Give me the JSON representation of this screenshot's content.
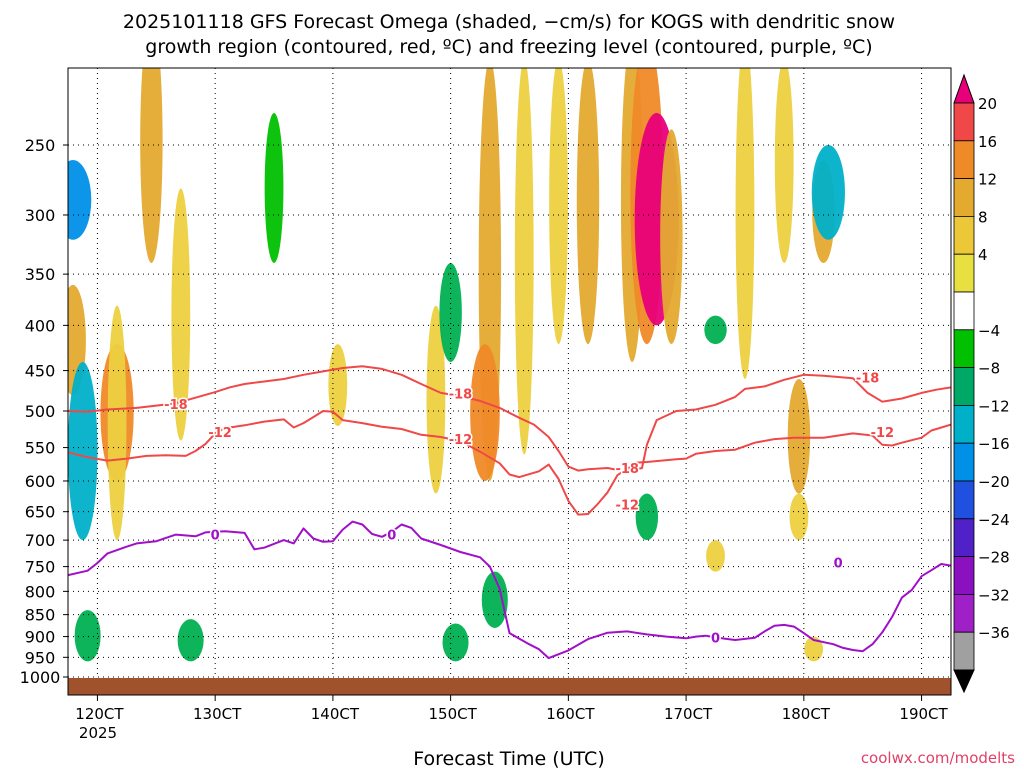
{
  "title_line1": "2025101118 GFS Forecast Omega (shaded, −cm/s) for KOGS with dendritic snow",
  "title_line2": "growth region (contoured, red, ºC) and freezing level (contoured, purple, ºC)",
  "xlabel": "Forecast Time (UTC)",
  "watermark": "coolwx.com/modelts",
  "year_label": "2025",
  "chart_data": {
    "type": "heatmap",
    "title": "2025101118 GFS Forecast Omega (shaded, −cm/s) for KOGS with dendritic snow growth region (contoured, red, ºC) and freezing level (contoured, purple, ºC)",
    "xlabel": "Forecast Time (UTC)",
    "ylabel": "",
    "x_range": [
      "2025-10-11 18Z",
      "2025-10-19 18Z"
    ],
    "y_scale": "log-pressure (inverted)",
    "y_range_hpa": [
      1000,
      200
    ],
    "x_ticks": [
      {
        "label": "120CT",
        "hours": 6
      },
      {
        "label": "130CT",
        "hours": 30
      },
      {
        "label": "140CT",
        "hours": 54
      },
      {
        "label": "150CT",
        "hours": 78
      },
      {
        "label": "160CT",
        "hours": 102
      },
      {
        "label": "170CT",
        "hours": 126
      },
      {
        "label": "180CT",
        "hours": 150
      },
      {
        "label": "190CT",
        "hours": 174
      }
    ],
    "y_ticks": [
      250,
      300,
      350,
      400,
      450,
      500,
      550,
      600,
      650,
      700,
      750,
      800,
      850,
      900,
      950,
      1000
    ],
    "colorbar": {
      "labels": [
        "20",
        "16",
        "12",
        "8",
        "4",
        "−4",
        "−8",
        "−12",
        "−16",
        "−20",
        "−24",
        "−28",
        "−32",
        "−36"
      ],
      "colors": [
        "#e8007a",
        "#f04848",
        "#ef8a28",
        "#e4aa30",
        "#ecc838",
        "#e8e040",
        "#ffffff",
        "#00c000",
        "#00a868",
        "#00b0c8",
        "#0090e8",
        "#2050e0",
        "#5020c8",
        "#8a10c0",
        "#a020c8",
        "#a0a0a0",
        "#000000"
      ]
    },
    "series": [
      {
        "name": "-18",
        "color": "#f04848",
        "points": [
          [
            0,
            500
          ],
          [
            4,
            501
          ],
          [
            8,
            498
          ],
          [
            14,
            496
          ],
          [
            18,
            493
          ],
          [
            22,
            490
          ],
          [
            26,
            483
          ],
          [
            30,
            476
          ],
          [
            33,
            470
          ],
          [
            36,
            466
          ],
          [
            40,
            463
          ],
          [
            44,
            460
          ],
          [
            48,
            455
          ],
          [
            52,
            451
          ],
          [
            56,
            447
          ],
          [
            60,
            445
          ],
          [
            64,
            448
          ],
          [
            68,
            455
          ],
          [
            72,
            466
          ],
          [
            76,
            477
          ],
          [
            80,
            481
          ],
          [
            84,
            487
          ],
          [
            88,
            496
          ],
          [
            92,
            509
          ],
          [
            95,
            518
          ],
          [
            98,
            535
          ],
          [
            100,
            555
          ],
          [
            102,
            578
          ],
          [
            104,
            584
          ],
          [
            106,
            582
          ],
          [
            110,
            580
          ],
          [
            114,
            586
          ],
          [
            117,
            580
          ],
          [
            118,
            546
          ],
          [
            120,
            512
          ],
          [
            124,
            500
          ],
          [
            128,
            498
          ],
          [
            132,
            492
          ],
          [
            136,
            482
          ],
          [
            138,
            472
          ],
          [
            142,
            469
          ],
          [
            146,
            461
          ],
          [
            150,
            455
          ],
          [
            154,
            456
          ],
          [
            160,
            459
          ],
          [
            163,
            477
          ],
          [
            166,
            488
          ],
          [
            170,
            484
          ],
          [
            174,
            477
          ],
          [
            177,
            473
          ],
          [
            180,
            470
          ]
        ]
      },
      {
        "name": "-12",
        "color": "#f04848",
        "points": [
          [
            0,
            557
          ],
          [
            4,
            564
          ],
          [
            8,
            569
          ],
          [
            12,
            566
          ],
          [
            16,
            562
          ],
          [
            20,
            561
          ],
          [
            24,
            562
          ],
          [
            26,
            555
          ],
          [
            28,
            545
          ],
          [
            30,
            530
          ],
          [
            32,
            523
          ],
          [
            36,
            519
          ],
          [
            40,
            514
          ],
          [
            44,
            511
          ],
          [
            46,
            522
          ],
          [
            48,
            516
          ],
          [
            50,
            508
          ],
          [
            52,
            500
          ],
          [
            54,
            501
          ],
          [
            56,
            512
          ],
          [
            60,
            516
          ],
          [
            64,
            521
          ],
          [
            68,
            524
          ],
          [
            72,
            532
          ],
          [
            76,
            535
          ],
          [
            80,
            541
          ],
          [
            84,
            556
          ],
          [
            88,
            573
          ],
          [
            90,
            590
          ],
          [
            92,
            594
          ],
          [
            96,
            585
          ],
          [
            98,
            575
          ],
          [
            100,
            597
          ],
          [
            102,
            632
          ],
          [
            104,
            655
          ],
          [
            106,
            654
          ],
          [
            108,
            637
          ],
          [
            110,
            618
          ],
          [
            112,
            591
          ],
          [
            116,
            572
          ],
          [
            118,
            571
          ],
          [
            124,
            567
          ],
          [
            126,
            566
          ],
          [
            128,
            559
          ],
          [
            132,
            555
          ],
          [
            136,
            553
          ],
          [
            140,
            543
          ],
          [
            144,
            538
          ],
          [
            148,
            536
          ],
          [
            154,
            536
          ],
          [
            160,
            530
          ],
          [
            164,
            533
          ],
          [
            166,
            546
          ],
          [
            168,
            547
          ],
          [
            170,
            543
          ],
          [
            174,
            536
          ],
          [
            176,
            526
          ],
          [
            180,
            518
          ]
        ]
      },
      {
        "name": "0",
        "color": "#a010c8",
        "points": [
          [
            0,
            767
          ],
          [
            4,
            758
          ],
          [
            6,
            743
          ],
          [
            8,
            725
          ],
          [
            12,
            712
          ],
          [
            14,
            706
          ],
          [
            18,
            702
          ],
          [
            22,
            690
          ],
          [
            26,
            693
          ],
          [
            28,
            686
          ],
          [
            32,
            684
          ],
          [
            36,
            687
          ],
          [
            38,
            717
          ],
          [
            40,
            714
          ],
          [
            44,
            700
          ],
          [
            46,
            706
          ],
          [
            48,
            679
          ],
          [
            50,
            697
          ],
          [
            52,
            703
          ],
          [
            54,
            702
          ],
          [
            56,
            681
          ],
          [
            58,
            667
          ],
          [
            60,
            672
          ],
          [
            62,
            689
          ],
          [
            64,
            694
          ],
          [
            66,
            685
          ],
          [
            68,
            672
          ],
          [
            70,
            678
          ],
          [
            72,
            697
          ],
          [
            76,
            709
          ],
          [
            80,
            722
          ],
          [
            84,
            732
          ],
          [
            86,
            750
          ],
          [
            88,
            795
          ],
          [
            90,
            892
          ],
          [
            94,
            918
          ],
          [
            96,
            930
          ],
          [
            98,
            952
          ],
          [
            102,
            933
          ],
          [
            106,
            906
          ],
          [
            110,
            891
          ],
          [
            114,
            888
          ],
          [
            118,
            895
          ],
          [
            122,
            900
          ],
          [
            126,
            904
          ],
          [
            128,
            900
          ],
          [
            130,
            898
          ],
          [
            132,
            902
          ],
          [
            134,
            905
          ],
          [
            136,
            908
          ],
          [
            140,
            903
          ],
          [
            142,
            888
          ],
          [
            144,
            875
          ],
          [
            146,
            873
          ],
          [
            148,
            877
          ],
          [
            150,
            892
          ],
          [
            152,
            908
          ],
          [
            156,
            918
          ],
          [
            158,
            927
          ],
          [
            160,
            932
          ],
          [
            162,
            935
          ],
          [
            164,
            918
          ],
          [
            166,
            890
          ],
          [
            168,
            855
          ],
          [
            170,
            813
          ],
          [
            172,
            797
          ],
          [
            174,
            769
          ],
          [
            176,
            757
          ],
          [
            178,
            745
          ],
          [
            180,
            748
          ]
        ]
      }
    ],
    "contour_labels": [
      {
        "text": "-18",
        "hours": 22,
        "hpa": 491
      },
      {
        "text": "-18",
        "hours": 80,
        "hpa": 478
      },
      {
        "text": "-18",
        "hours": 114,
        "hpa": 580
      },
      {
        "text": "-18",
        "hours": 163,
        "hpa": 458
      },
      {
        "text": "-12",
        "hours": 31,
        "hpa": 528
      },
      {
        "text": "-12",
        "hours": 80,
        "hpa": 538
      },
      {
        "text": "-12",
        "hours": 114,
        "hpa": 638
      },
      {
        "text": "-12",
        "hours": 166,
        "hpa": 528
      },
      {
        "text": "0",
        "hours": 30,
        "hpa": 690
      },
      {
        "text": "0",
        "hours": 66,
        "hpa": 690
      },
      {
        "text": "0",
        "hours": 132,
        "hpa": 902
      },
      {
        "text": "0",
        "hours": 157,
        "hpa": 742
      }
    ],
    "omega_blobs": [
      {
        "hours": 1,
        "hpa_top": 360,
        "hpa_bot": 480,
        "value": 10
      },
      {
        "hours": 3,
        "hpa_top": 440,
        "hpa_bot": 700,
        "value": -12
      },
      {
        "hours": 1,
        "hpa_top": 260,
        "hpa_bot": 320,
        "value": -16
      },
      {
        "hours": 10,
        "hpa_top": 420,
        "hpa_bot": 600,
        "value": 14
      },
      {
        "hours": 10,
        "hpa_top": 380,
        "hpa_bot": 700,
        "value": 6
      },
      {
        "hours": 4,
        "hpa_top": 840,
        "hpa_bot": 960,
        "value": -10
      },
      {
        "hours": 17,
        "hpa_top": 180,
        "hpa_bot": 340,
        "value": 8
      },
      {
        "hours": 23,
        "hpa_top": 280,
        "hpa_bot": 540,
        "value": 6
      },
      {
        "hours": 25,
        "hpa_top": 860,
        "hpa_bot": 960,
        "value": -10
      },
      {
        "hours": 42,
        "hpa_top": 230,
        "hpa_bot": 340,
        "value": -6
      },
      {
        "hours": 55,
        "hpa_top": 420,
        "hpa_bot": 520,
        "value": 6
      },
      {
        "hours": 75,
        "hpa_top": 380,
        "hpa_bot": 620,
        "value": 6
      },
      {
        "hours": 78,
        "hpa_top": 340,
        "hpa_bot": 440,
        "value": -8
      },
      {
        "hours": 86,
        "hpa_top": 200,
        "hpa_bot": 600,
        "value": 8
      },
      {
        "hours": 85,
        "hpa_top": 420,
        "hpa_bot": 600,
        "value": 12
      },
      {
        "hours": 79,
        "hpa_top": 870,
        "hpa_bot": 960,
        "value": -10
      },
      {
        "hours": 87,
        "hpa_top": 760,
        "hpa_bot": 880,
        "value": -10
      },
      {
        "hours": 93,
        "hpa_top": 200,
        "hpa_bot": 560,
        "value": 6
      },
      {
        "hours": 100,
        "hpa_top": 200,
        "hpa_bot": 420,
        "value": 6
      },
      {
        "hours": 106,
        "hpa_top": 200,
        "hpa_bot": 420,
        "value": 8
      },
      {
        "hours": 115,
        "hpa_top": 190,
        "hpa_bot": 440,
        "value": 8
      },
      {
        "hours": 118,
        "hpa_top": 190,
        "hpa_bot": 420,
        "value": 14
      },
      {
        "hours": 120,
        "hpa_top": 230,
        "hpa_bot": 400,
        "value": 20
      },
      {
        "hours": 123,
        "hpa_top": 240,
        "hpa_bot": 420,
        "value": 8
      },
      {
        "hours": 118,
        "hpa_top": 620,
        "hpa_bot": 700,
        "value": -8
      },
      {
        "hours": 138,
        "hpa_top": 190,
        "hpa_bot": 460,
        "value": 6
      },
      {
        "hours": 146,
        "hpa_top": 200,
        "hpa_bot": 340,
        "value": 6
      },
      {
        "hours": 154,
        "hpa_top": 260,
        "hpa_bot": 340,
        "value": 8
      },
      {
        "hours": 149,
        "hpa_top": 460,
        "hpa_bot": 620,
        "value": 8
      },
      {
        "hours": 155,
        "hpa_top": 250,
        "hpa_bot": 320,
        "value": -14
      },
      {
        "hours": 132,
        "hpa_top": 390,
        "hpa_bot": 420,
        "value": -8
      },
      {
        "hours": 149,
        "hpa_top": 620,
        "hpa_bot": 700,
        "value": 6
      },
      {
        "hours": 132,
        "hpa_top": 700,
        "hpa_bot": 760,
        "value": 6
      },
      {
        "hours": 152,
        "hpa_top": 900,
        "hpa_bot": 960,
        "value": 6
      }
    ]
  }
}
